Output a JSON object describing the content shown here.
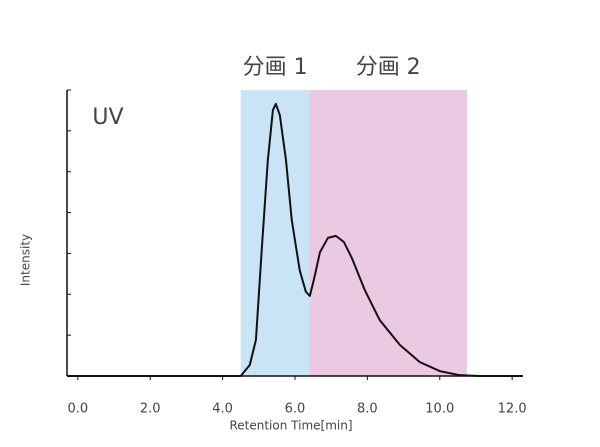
{
  "chart_data": {
    "type": "line",
    "xlabel": "Retention Time[min]",
    "ylabel": "Intensity",
    "annotation": "UV",
    "xlim": [
      -0.3,
      12.3
    ],
    "ylim": [
      0,
      7
    ],
    "xticks": [
      {
        "value": 0,
        "label": "0.0"
      },
      {
        "value": 2,
        "label": "2.0"
      },
      {
        "value": 4,
        "label": "4.0"
      },
      {
        "value": 6,
        "label": "6.0"
      },
      {
        "value": 8,
        "label": "8.0"
      },
      {
        "value": 10,
        "label": "10.0"
      },
      {
        "value": 12,
        "label": "12.0"
      }
    ],
    "yticks": [
      0,
      1,
      2,
      3,
      4,
      5,
      6,
      7
    ],
    "regions": [
      {
        "label": "分画 1",
        "range": [
          4.5,
          6.4
        ],
        "color": "#c9e4f5"
      },
      {
        "label": "分画 2",
        "range": [
          6.4,
          10.75
        ],
        "color": "#ebc9e2"
      }
    ],
    "x": [
      -0.3,
      4.5,
      4.75,
      4.92,
      5.08,
      5.25,
      5.39,
      5.47,
      5.58,
      5.75,
      5.91,
      6.13,
      6.3,
      6.41,
      6.52,
      6.69,
      6.91,
      7.13,
      7.35,
      7.57,
      7.93,
      8.34,
      8.9,
      9.45,
      10.0,
      10.55,
      11.1,
      12.29
    ],
    "series": [
      {
        "color": "#111111",
        "values": [
          0,
          0,
          0.27,
          0.88,
          3.08,
          5.29,
          6.51,
          6.66,
          6.39,
          5.29,
          3.82,
          2.59,
          2.06,
          1.96,
          2.35,
          3.03,
          3.38,
          3.43,
          3.28,
          2.89,
          2.1,
          1.37,
          0.76,
          0.34,
          0.12,
          0.02,
          0,
          0
        ]
      }
    ]
  }
}
